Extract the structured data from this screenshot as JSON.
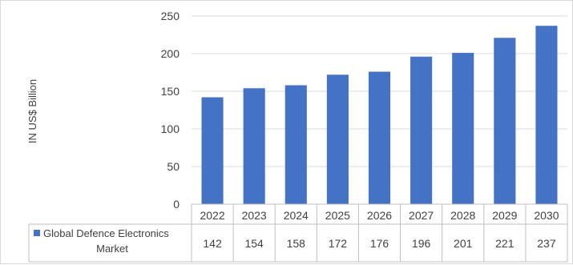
{
  "chart_data": {
    "type": "bar",
    "categories": [
      "2022",
      "2023",
      "2024",
      "2025",
      "2026",
      "2027",
      "2028",
      "2029",
      "2030"
    ],
    "series": [
      {
        "name": "Global Defence Electronics Market",
        "values": [
          142,
          154,
          158,
          172,
          176,
          196,
          201,
          221,
          237
        ],
        "color": "#4472c4"
      }
    ],
    "ylabel": "IN US$ Billion",
    "ylim": [
      0,
      250
    ],
    "yticks": [
      "0",
      "50",
      "100",
      "150",
      "200",
      "250"
    ],
    "grid": true,
    "legend": "data-table-left"
  },
  "table": {
    "legend_line1": "Global Defence Electronics",
    "legend_line2": "Market"
  }
}
